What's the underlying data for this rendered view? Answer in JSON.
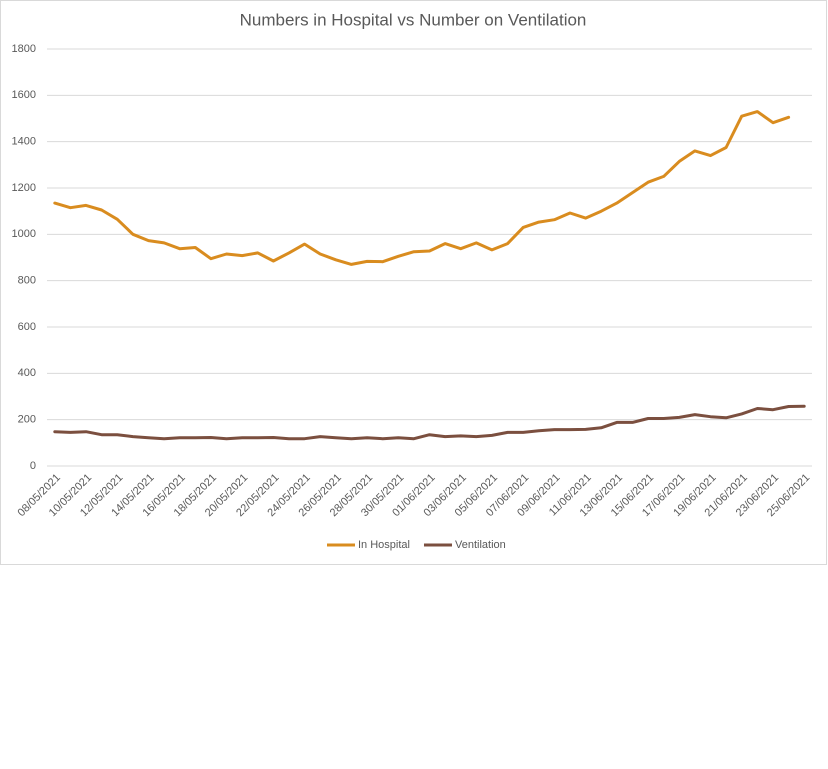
{
  "chart_data": {
    "type": "line",
    "title": "Numbers in Hospital vs Number on Ventilation",
    "categories": [
      "08/05/2021",
      null,
      "10/05/2021",
      null,
      "12/05/2021",
      null,
      "14/05/2021",
      null,
      "16/05/2021",
      null,
      "18/05/2021",
      null,
      "20/05/2021",
      null,
      "22/05/2021",
      null,
      "24/05/2021",
      null,
      "26/05/2021",
      null,
      "28/05/2021",
      null,
      "30/05/2021",
      null,
      "01/06/2021",
      null,
      "03/06/2021",
      null,
      "05/06/2021",
      null,
      "07/06/2021",
      null,
      "09/06/2021",
      null,
      "11/06/2021",
      null,
      "13/06/2021",
      null,
      "15/06/2021",
      null,
      "17/06/2021",
      null,
      "19/06/2021",
      null,
      "21/06/2021",
      null,
      "23/06/2021",
      null,
      "25/06/2021"
    ],
    "series": [
      {
        "name": "In Hospital",
        "color": "#d98c1f",
        "values": [
          1135,
          1115,
          1125,
          1105,
          1065,
          1000,
          973,
          963,
          938,
          943,
          895,
          915,
          908,
          920,
          885,
          920,
          958,
          915,
          890,
          870,
          883,
          882,
          905,
          925,
          928,
          960,
          938,
          963,
          933,
          960,
          1030,
          1053,
          1063,
          1092,
          1070,
          1100,
          1135,
          1180,
          1225,
          1250,
          1315,
          1360,
          1340,
          1375,
          1510,
          1530,
          1482,
          1505,
          null
        ]
      },
      {
        "name": "Ventilation",
        "color": "#7b4f3f",
        "values": [
          148,
          145,
          148,
          135,
          135,
          127,
          122,
          118,
          122,
          122,
          123,
          118,
          122,
          122,
          123,
          118,
          118,
          127,
          122,
          118,
          122,
          118,
          122,
          118,
          135,
          127,
          130,
          127,
          132,
          145,
          145,
          152,
          157,
          157,
          158,
          165,
          188,
          188,
          205,
          205,
          210,
          222,
          213,
          208,
          225,
          248,
          243,
          257,
          258
        ]
      }
    ],
    "ylim": [
      0,
      1800
    ],
    "yticks": [
      0,
      200,
      400,
      600,
      800,
      1000,
      1200,
      1400,
      1600,
      1800
    ],
    "grid": true,
    "legend": "bottom"
  }
}
